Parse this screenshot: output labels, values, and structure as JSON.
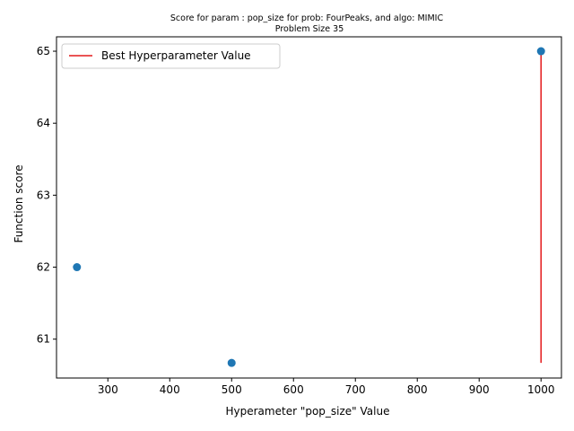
{
  "chart_data": {
    "type": "scatter",
    "title_line1": "Score for param : pop_size for prob: FourPeaks, and algo: MIMIC",
    "title_line2": "Problem Size 35",
    "xlabel": "Hyperameter \"pop_size\" Value",
    "ylabel": "Function score",
    "xlim": [
      217,
      1033
    ],
    "ylim": [
      60.46,
      65.2
    ],
    "x_ticks": [
      300,
      400,
      500,
      600,
      700,
      800,
      900,
      1000
    ],
    "y_ticks": [
      61,
      62,
      63,
      64,
      65
    ],
    "grid": false,
    "legend_position": "top-left",
    "series": [
      {
        "kind": "points",
        "color": "#1f77b4",
        "x": [
          250,
          500,
          1000
        ],
        "y": [
          62,
          60.67,
          65
        ]
      },
      {
        "kind": "vline",
        "name": "Best Hyperparameter Value",
        "color": "#e41a1c",
        "x": 1000,
        "y_from": 60.67,
        "y_to": 65
      }
    ]
  }
}
